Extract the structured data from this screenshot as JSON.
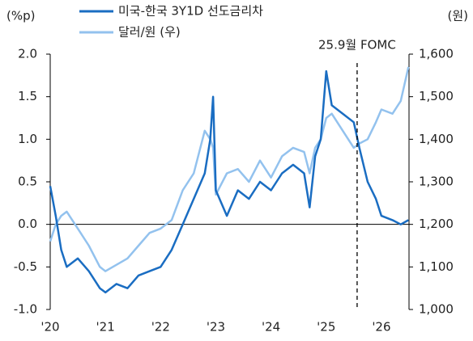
{
  "chart_data": {
    "type": "line",
    "ylabel": "(%p)",
    "y2label": "(원)",
    "x": [
      2020.0,
      2020.1,
      2020.2,
      2020.3,
      2020.5,
      2020.7,
      2020.9,
      2021.0,
      2021.2,
      2021.4,
      2021.6,
      2021.8,
      2022.0,
      2022.2,
      2022.4,
      2022.6,
      2022.8,
      2022.9,
      2022.95,
      2023.0,
      2023.2,
      2023.4,
      2023.6,
      2023.8,
      2024.0,
      2024.2,
      2024.4,
      2024.6,
      2024.7,
      2024.8,
      2024.9,
      2025.0,
      2025.1,
      2025.3,
      2025.5,
      2025.6,
      2025.75,
      2025.9,
      2026.0,
      2026.2,
      2026.35,
      2026.49
    ],
    "series": [
      {
        "name": "미국-한국 3Y1D 선도금리차",
        "color": "#1a6dc2",
        "axis": "y",
        "values": [
          0.45,
          0.1,
          -0.3,
          -0.5,
          -0.4,
          -0.55,
          -0.75,
          -0.8,
          -0.7,
          -0.75,
          -0.6,
          -0.55,
          -0.5,
          -0.3,
          0.0,
          0.3,
          0.6,
          1.0,
          1.5,
          0.4,
          0.1,
          0.4,
          0.3,
          0.5,
          0.4,
          0.6,
          0.7,
          0.6,
          0.2,
          0.8,
          1.0,
          1.8,
          1.4,
          1.3,
          1.2,
          0.9,
          0.5,
          0.3,
          0.1,
          0.05,
          0.0,
          0.05
        ]
      },
      {
        "name": "달러/원 (우)",
        "color": "#93c2ee",
        "axis": "y2",
        "values": [
          1160,
          1200,
          1220,
          1230,
          1190,
          1150,
          1100,
          1090,
          1105,
          1120,
          1150,
          1180,
          1190,
          1210,
          1280,
          1320,
          1420,
          1400,
          1380,
          1270,
          1320,
          1330,
          1300,
          1350,
          1310,
          1360,
          1380,
          1370,
          1320,
          1380,
          1400,
          1450,
          1460,
          1420,
          1380,
          1390,
          1400,
          1440,
          1470,
          1460,
          1490,
          1570
        ]
      }
    ],
    "xlim": [
      2020,
      2026.5
    ],
    "xticks": [
      {
        "value": 2020,
        "label": "'20"
      },
      {
        "value": 2021,
        "label": "'21"
      },
      {
        "value": 2022,
        "label": "'22"
      },
      {
        "value": 2023,
        "label": "'23"
      },
      {
        "value": 2024,
        "label": "'24"
      },
      {
        "value": 2025,
        "label": "'25"
      },
      {
        "value": 2026,
        "label": "'26"
      }
    ],
    "ylim": [
      -1,
      2
    ],
    "yticks": [
      {
        "value": -1,
        "label": "-1.0"
      },
      {
        "value": -0.5,
        "label": "-0.5"
      },
      {
        "value": 0,
        "label": "0.0"
      },
      0.5,
      {
        "value": 1,
        "label": "1.0"
      },
      1.5,
      {
        "value": 2,
        "label": "2.0"
      }
    ],
    "y2lim": [
      1000,
      1600
    ],
    "y2ticks": [
      {
        "value": 1000,
        "label": "1,000"
      },
      {
        "value": 1100,
        "label": "1,100"
      },
      {
        "value": 1200,
        "label": "1,200"
      },
      {
        "value": 1300,
        "label": "1,300"
      },
      {
        "value": 1400,
        "label": "1,400"
      },
      {
        "value": 1500,
        "label": "1,500"
      },
      {
        "value": 1600,
        "label": "1,600"
      }
    ],
    "annotation": {
      "text": "25.9월 FOMC",
      "x": 2025.56
    }
  }
}
